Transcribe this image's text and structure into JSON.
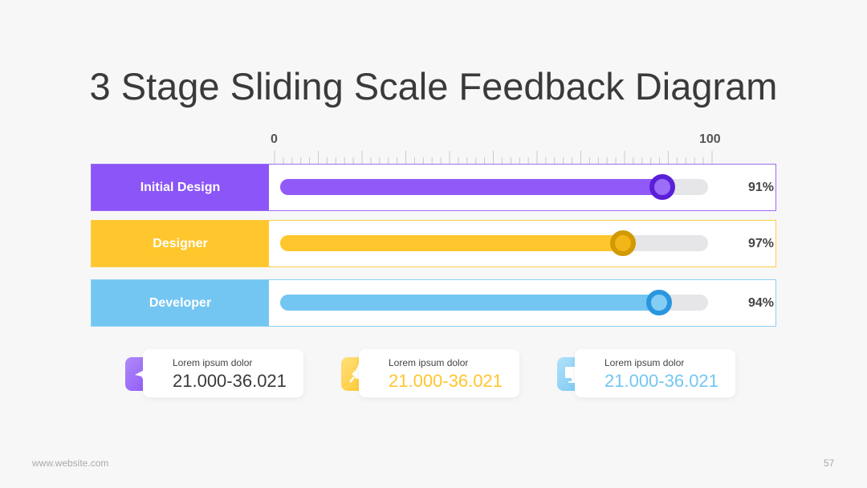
{
  "title": "3 Stage Sliding Scale Feedback Diagram",
  "scale": {
    "start_label": "0",
    "end_label": "100"
  },
  "rows": [
    {
      "label": "Initial Design",
      "percent": "91%"
    },
    {
      "label": "Designer",
      "percent": "97%"
    },
    {
      "label": "Developer",
      "percent": "94%"
    }
  ],
  "stats": [
    {
      "caption": "Lorem ipsum dolor",
      "range": "21.000-36.021"
    },
    {
      "caption": "Lorem ipsum dolor",
      "range": "21.000-36.021"
    },
    {
      "caption": "Lorem ipsum dolor",
      "range": "21.000-36.021"
    }
  ],
  "footer": {
    "website": "www.website.com",
    "page": "57"
  }
}
